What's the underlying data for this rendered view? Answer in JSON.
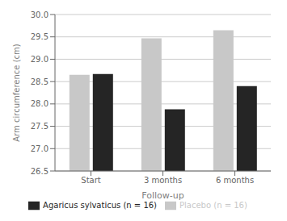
{
  "chart_data": {
    "type": "bar",
    "xlabel": "Follow-up",
    "ylabel": "Arm circumference (cm)",
    "categories": [
      "Start",
      "3 months",
      "6 months"
    ],
    "series": [
      {
        "name": "Placebo (n = 16)",
        "color": "#c8c8c8",
        "values": [
          28.65,
          29.47,
          29.65
        ]
      },
      {
        "name": "Agaricus sylvaticus (n = 16)",
        "color": "#252525",
        "values": [
          28.67,
          27.88,
          28.4
        ]
      }
    ],
    "ylim": [
      26.5,
      30.0
    ],
    "yticks": [
      26.5,
      {
        "value": 27,
        "label": "27.0"
      },
      27.5,
      {
        "value": 28,
        "label": "28.0"
      },
      28.5,
      {
        "value": 29,
        "label": "29.0"
      },
      29.5,
      {
        "value": 30,
        "label": "30.0"
      }
    ],
    "grid": true,
    "legend": "bottom"
  }
}
